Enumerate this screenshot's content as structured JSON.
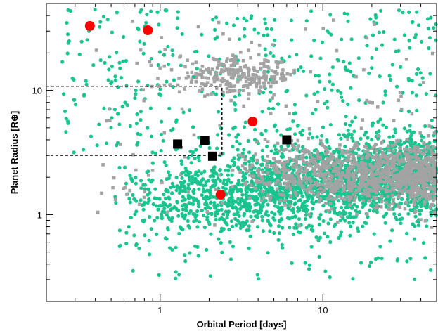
{
  "chart_data": {
    "type": "scatter",
    "title": "",
    "xlabel": "Orbital Period [days]",
    "ylabel": "Planet Radius [R⊕]",
    "xscale": "log",
    "yscale": "log",
    "xlim": [
      0.2,
      50
    ],
    "ylim": [
      0.2,
      50
    ],
    "grid": false,
    "legend": "none",
    "x_ticks": [
      {
        "value": 1,
        "label": "1"
      },
      {
        "value": 10,
        "label": "10"
      }
    ],
    "y_ticks": [
      {
        "value": 1,
        "label": "1"
      },
      {
        "value": 10,
        "label": "10"
      }
    ],
    "colors": {
      "green_points": "#19c48f",
      "gray_points": "#a3a3a3",
      "red_points": "#ff0000",
      "black_points": "#000000",
      "region_outline": "#000000"
    },
    "series": [
      {
        "marker": "square",
        "color": "#000000",
        "points": [
          [
            1.28,
            3.7
          ],
          [
            1.88,
            3.95
          ],
          [
            2.1,
            2.95
          ],
          [
            6.0,
            4.0
          ]
        ]
      },
      {
        "marker": "circle",
        "color": "#ff0000",
        "points": [
          [
            0.37,
            33
          ],
          [
            0.84,
            30.5
          ],
          [
            3.7,
            5.6
          ],
          [
            2.35,
            1.45
          ]
        ]
      }
    ],
    "background_populations": [
      {
        "marker": "circle",
        "color": "#19c48f",
        "description_hidden": true
      },
      {
        "marker": "square",
        "color": "#a3a3a3",
        "description_hidden": true
      }
    ],
    "annotations": [
      {
        "type": "dashed-box",
        "x_range": [
          0.2,
          2.4
        ],
        "y_range": [
          3.0,
          10.8
        ]
      }
    ]
  }
}
